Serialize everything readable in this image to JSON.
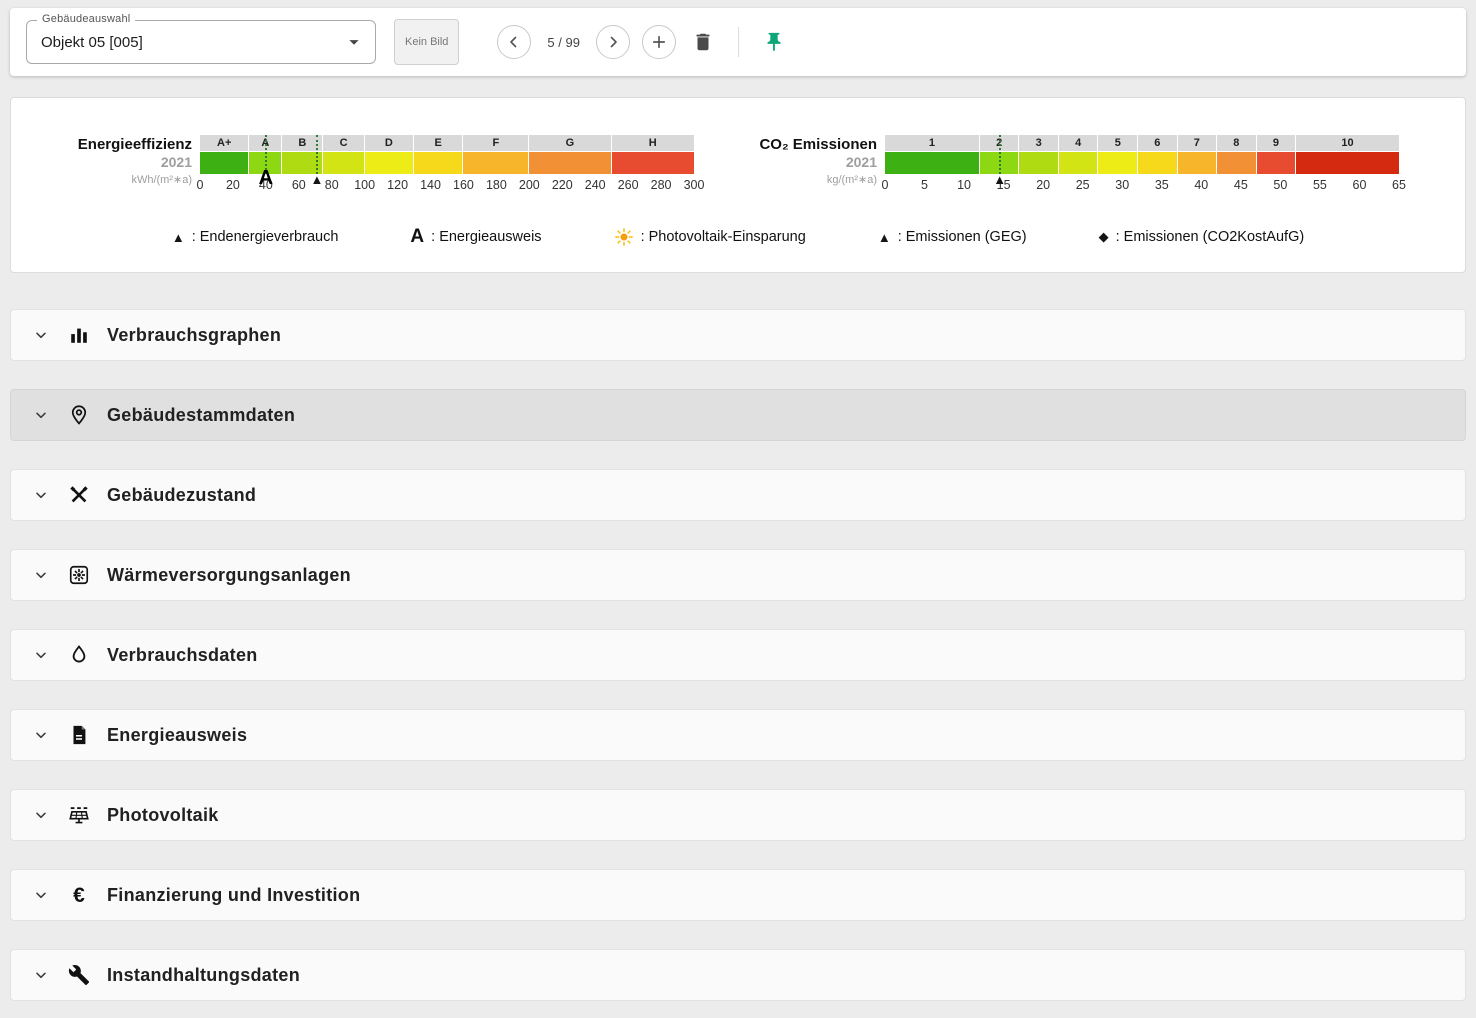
{
  "toolbar": {
    "select_label": "Gebäudeauswahl",
    "select_value": "Objekt 05 [005]",
    "no_image_label": "Kein Bild",
    "page_indicator": "5 / 99"
  },
  "chart_data": [
    {
      "type": "scale",
      "title": "Energieeffizienz",
      "year": "2021",
      "unit": "kWh/(m²∗a)",
      "min": 0,
      "max": 300,
      "ticks": [
        0,
        20,
        40,
        60,
        80,
        100,
        120,
        140,
        160,
        180,
        200,
        220,
        240,
        260,
        280,
        300
      ],
      "classes": [
        {
          "label": "A+",
          "from": 0,
          "to": 30,
          "color": "#3db014"
        },
        {
          "label": "A",
          "from": 30,
          "to": 50,
          "color": "#8ed813"
        },
        {
          "label": "B",
          "from": 50,
          "to": 75,
          "color": "#aedb12"
        },
        {
          "label": "C",
          "from": 75,
          "to": 100,
          "color": "#d3e414"
        },
        {
          "label": "D",
          "from": 100,
          "to": 130,
          "color": "#eeec16"
        },
        {
          "label": "E",
          "from": 130,
          "to": 160,
          "color": "#f6d91a"
        },
        {
          "label": "F",
          "from": 160,
          "to": 200,
          "color": "#f6b52b"
        },
        {
          "label": "G",
          "from": 200,
          "to": 250,
          "color": "#f19035"
        },
        {
          "label": "H",
          "from": 250,
          "to": 300,
          "color": "#e74c30"
        }
      ],
      "markers": [
        {
          "name": "energieausweis",
          "icon": "letter-a",
          "glyph": "A",
          "value": 40
        },
        {
          "name": "endenergieverbrauch",
          "icon": "triangle",
          "glyph": "▲",
          "value": 71
        }
      ]
    },
    {
      "type": "scale",
      "title": "CO₂ Emissionen",
      "year": "2021",
      "unit": "kg/(m²∗a)",
      "min": 0,
      "max": 65,
      "ticks": [
        0,
        5,
        10,
        15,
        20,
        25,
        30,
        35,
        40,
        45,
        50,
        55,
        60,
        65
      ],
      "classes": [
        {
          "label": "1",
          "from": 0,
          "to": 12,
          "color": "#3db014"
        },
        {
          "label": "2",
          "from": 12,
          "to": 17,
          "color": "#8ed813"
        },
        {
          "label": "3",
          "from": 17,
          "to": 22,
          "color": "#aedb12"
        },
        {
          "label": "4",
          "from": 22,
          "to": 27,
          "color": "#d3e414"
        },
        {
          "label": "5",
          "from": 27,
          "to": 32,
          "color": "#eeec16"
        },
        {
          "label": "6",
          "from": 32,
          "to": 37,
          "color": "#f6d91a"
        },
        {
          "label": "7",
          "from": 37,
          "to": 42,
          "color": "#f6b52b"
        },
        {
          "label": "8",
          "from": 42,
          "to": 47,
          "color": "#f19035"
        },
        {
          "label": "9",
          "from": 47,
          "to": 52,
          "color": "#e74c30"
        },
        {
          "label": "10",
          "from": 52,
          "to": 65,
          "color": "#d42a10"
        }
      ],
      "markers": [
        {
          "name": "emissionen-geg",
          "icon": "triangle",
          "glyph": "▲",
          "value": 14.5
        }
      ]
    }
  ],
  "legend": [
    {
      "icon": "triangle",
      "text": ": Endenergieverbrauch"
    },
    {
      "icon": "letter-a",
      "text": ": Energieausweis"
    },
    {
      "icon": "sun",
      "text": ": Photovoltaik-Einsparung"
    },
    {
      "icon": "triangle",
      "text": ": Emissionen (GEG)"
    },
    {
      "icon": "diamond",
      "text": ": Emissionen (CO2KostAufG)"
    }
  ],
  "sections": [
    {
      "id": "verbrauchsgraphen",
      "icon": "bar-chart-icon",
      "label": "Verbrauchsgraphen",
      "active": false
    },
    {
      "id": "gebaeudestammdaten",
      "icon": "location-pin-icon",
      "label": "Gebäudestammdaten",
      "active": true
    },
    {
      "id": "gebaeudezustand",
      "icon": "tools-icon",
      "label": "Gebäudezustand",
      "active": false
    },
    {
      "id": "waermeversorgungsanlagen",
      "icon": "hvac-icon",
      "label": "Wärmeversorgungsanlagen",
      "active": false
    },
    {
      "id": "verbrauchsdaten",
      "icon": "flame-icon",
      "label": "Verbrauchsdaten",
      "active": false
    },
    {
      "id": "energieausweis",
      "icon": "document-icon",
      "label": "Energieausweis",
      "active": false
    },
    {
      "id": "photovoltaik",
      "icon": "solar-panel-icon",
      "label": "Photovoltaik",
      "active": false
    },
    {
      "id": "finanzierung-und-investition",
      "icon": "euro-icon",
      "label": "Finanzierung und Investition",
      "active": false
    },
    {
      "id": "instandhaltungsdaten",
      "icon": "wrench-icon",
      "label": "Instandhaltungsdaten",
      "active": false
    }
  ],
  "colors": {
    "marker_green": "#2e7d32",
    "pin_teal": "#0ca678",
    "class_strip_gray": "#d9d9d9"
  }
}
